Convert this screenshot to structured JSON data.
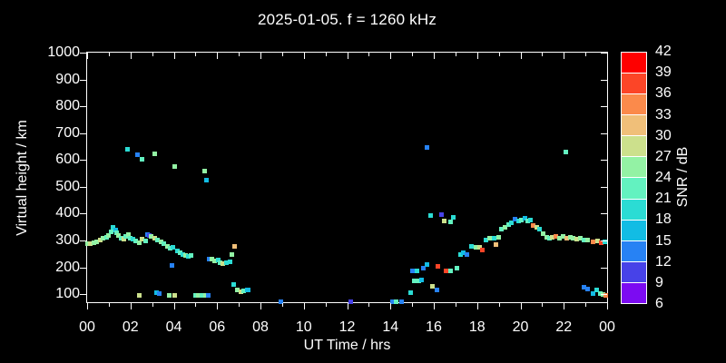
{
  "title": "2025-01-05. f = 1260 kHz",
  "chart_data": {
    "type": "scatter",
    "title": "2025-01-05. f = 1260 kHz",
    "xlabel": "UT Time / hrs",
    "ylabel": "Virtual height / km",
    "xlim": [
      0,
      24
    ],
    "ylim": [
      70,
      1000
    ],
    "grid": false,
    "x_tick_labels": [
      "00",
      "02",
      "04",
      "06",
      "08",
      "10",
      "12",
      "14",
      "16",
      "18",
      "20",
      "22",
      "00"
    ],
    "x_tick_hours": [
      0,
      2,
      4,
      6,
      8,
      10,
      12,
      14,
      16,
      18,
      20,
      22,
      24
    ],
    "y_tick_values": [
      100,
      200,
      300,
      400,
      500,
      600,
      700,
      800,
      900,
      1000
    ],
    "colorbar": {
      "label": "SNR / dB",
      "tick_labels": [
        "42",
        "39",
        "36",
        "33",
        "30",
        "27",
        "24",
        "21",
        "18",
        "15",
        "12",
        "9",
        "6"
      ],
      "min": 6,
      "max": 42,
      "step": 3,
      "colors_low_to_high": [
        "#7c0bf2",
        "#4742e8",
        "#2782f4",
        "#12bce4",
        "#2bdcd4",
        "#63f2c0",
        "#93f2a4",
        "#cce08c",
        "#f0bf79",
        "#fb8a4b",
        "#fc4527",
        "#fe0000"
      ]
    },
    "points_format": [
      "ut_hours",
      "virtual_height_km",
      "snr_db"
    ],
    "points": [
      [
        0.0,
        287,
        25
      ],
      [
        0.15,
        289,
        28
      ],
      [
        0.3,
        292,
        25
      ],
      [
        0.45,
        296,
        25
      ],
      [
        0.6,
        301,
        28
      ],
      [
        0.75,
        307,
        25
      ],
      [
        0.9,
        313,
        22
      ],
      [
        1.0,
        320,
        25
      ],
      [
        1.1,
        331,
        22
      ],
      [
        1.2,
        350,
        19
      ],
      [
        1.3,
        340,
        16
      ],
      [
        1.35,
        330,
        22
      ],
      [
        1.45,
        318,
        25
      ],
      [
        1.55,
        310,
        22
      ],
      [
        1.7,
        304,
        28
      ],
      [
        1.8,
        316,
        22
      ],
      [
        1.9,
        322,
        25
      ],
      [
        2.0,
        310,
        22
      ],
      [
        2.1,
        304,
        19
      ],
      [
        2.25,
        299,
        22
      ],
      [
        2.4,
        293,
        25
      ],
      [
        2.55,
        306,
        28
      ],
      [
        2.7,
        298,
        22
      ],
      [
        2.8,
        322,
        13
      ],
      [
        2.88,
        318,
        10
      ],
      [
        2.95,
        315,
        25
      ],
      [
        3.1,
        308,
        28
      ],
      [
        3.25,
        301,
        22
      ],
      [
        3.4,
        294,
        25
      ],
      [
        3.55,
        287,
        22
      ],
      [
        3.7,
        279,
        25
      ],
      [
        3.83,
        272,
        22
      ],
      [
        3.95,
        275,
        19
      ],
      [
        4.17,
        260,
        19
      ],
      [
        4.3,
        256,
        22
      ],
      [
        4.42,
        249,
        19
      ],
      [
        4.55,
        245,
        25
      ],
      [
        4.66,
        240,
        19
      ],
      [
        4.8,
        245,
        22
      ],
      [
        5.63,
        231,
        13
      ],
      [
        5.77,
        229,
        25
      ],
      [
        5.9,
        223,
        25
      ],
      [
        6.05,
        227,
        19
      ],
      [
        6.15,
        218,
        22
      ],
      [
        6.28,
        215,
        28
      ],
      [
        6.42,
        218,
        19
      ],
      [
        6.6,
        220,
        19
      ],
      [
        6.68,
        246,
        25
      ],
      [
        6.8,
        278,
        31
      ],
      [
        2.42,
        94,
        28
      ],
      [
        3.2,
        104,
        16
      ],
      [
        3.35,
        102,
        13
      ],
      [
        3.8,
        94,
        25
      ],
      [
        4.05,
        95,
        28
      ],
      [
        5.0,
        94,
        22
      ],
      [
        5.15,
        94,
        25
      ],
      [
        5.3,
        94,
        22
      ],
      [
        5.45,
        94,
        25
      ],
      [
        5.6,
        94,
        13
      ],
      [
        6.75,
        135,
        19
      ],
      [
        6.95,
        114,
        25
      ],
      [
        7.1,
        108,
        28
      ],
      [
        7.23,
        111,
        22
      ],
      [
        7.38,
        114,
        16
      ],
      [
        7.45,
        117,
        16
      ],
      [
        3.92,
        207,
        13
      ],
      [
        1.85,
        641,
        19
      ],
      [
        2.34,
        621,
        13
      ],
      [
        2.53,
        604,
        22
      ],
      [
        3.1,
        622,
        25
      ],
      [
        4.06,
        574,
        25
      ],
      [
        5.43,
        557,
        25
      ],
      [
        5.52,
        526,
        16
      ],
      [
        8.93,
        73,
        13
      ],
      [
        12.17,
        73,
        10
      ],
      [
        14.1,
        73,
        13
      ],
      [
        14.25,
        73,
        22
      ],
      [
        14.5,
        73,
        13
      ],
      [
        15.7,
        646,
        13
      ],
      [
        22.1,
        630,
        22
      ],
      [
        14.95,
        106,
        19
      ],
      [
        15.1,
        148,
        22
      ],
      [
        15.3,
        150,
        22
      ],
      [
        15.44,
        152,
        16
      ],
      [
        15.93,
        128,
        28
      ],
      [
        16.14,
        117,
        13
      ],
      [
        15.02,
        187,
        13
      ],
      [
        15.23,
        185,
        19
      ],
      [
        15.5,
        196,
        13
      ],
      [
        15.7,
        212,
        16
      ],
      [
        16.2,
        203,
        37
      ],
      [
        16.56,
        187,
        37
      ],
      [
        16.77,
        187,
        22
      ],
      [
        17.08,
        196,
        22
      ],
      [
        15.86,
        392,
        19
      ],
      [
        16.35,
        398,
        10
      ],
      [
        16.5,
        372,
        28
      ],
      [
        16.77,
        368,
        22
      ],
      [
        16.9,
        386,
        19
      ],
      [
        17.22,
        246,
        19
      ],
      [
        17.35,
        254,
        16
      ],
      [
        17.53,
        249,
        13
      ],
      [
        17.74,
        279,
        19
      ],
      [
        17.95,
        276,
        25
      ],
      [
        18.13,
        274,
        28
      ],
      [
        18.22,
        265,
        37
      ],
      [
        18.4,
        302,
        19
      ],
      [
        18.57,
        308,
        25
      ],
      [
        18.78,
        310,
        19
      ],
      [
        18.85,
        285,
        31
      ],
      [
        19.0,
        313,
        25
      ],
      [
        19.13,
        341,
        22
      ],
      [
        19.27,
        350,
        25
      ],
      [
        19.45,
        358,
        22
      ],
      [
        19.6,
        366,
        19
      ],
      [
        19.75,
        378,
        13
      ],
      [
        19.9,
        372,
        19
      ],
      [
        20.05,
        375,
        22
      ],
      [
        20.2,
        383,
        16
      ],
      [
        20.33,
        372,
        22
      ],
      [
        20.47,
        375,
        19
      ],
      [
        20.6,
        356,
        34
      ],
      [
        20.75,
        350,
        28
      ],
      [
        20.9,
        341,
        19
      ],
      [
        21.04,
        324,
        25
      ],
      [
        21.2,
        313,
        25
      ],
      [
        21.33,
        308,
        22
      ],
      [
        21.48,
        311,
        28
      ],
      [
        21.64,
        315,
        34
      ],
      [
        21.8,
        310,
        25
      ],
      [
        21.98,
        314,
        25
      ],
      [
        22.15,
        309,
        31
      ],
      [
        22.3,
        313,
        25
      ],
      [
        22.45,
        308,
        25
      ],
      [
        22.6,
        305,
        28
      ],
      [
        22.78,
        308,
        25
      ],
      [
        22.95,
        300,
        22
      ],
      [
        23.12,
        303,
        25
      ],
      [
        23.37,
        296,
        34
      ],
      [
        23.54,
        299,
        28
      ],
      [
        23.72,
        291,
        37
      ],
      [
        23.9,
        294,
        19
      ],
      [
        22.92,
        126,
        13
      ],
      [
        23.12,
        119,
        13
      ],
      [
        23.34,
        101,
        16
      ],
      [
        23.5,
        115,
        19
      ],
      [
        23.67,
        102,
        22
      ],
      [
        23.82,
        99,
        25
      ],
      [
        23.95,
        94,
        34
      ]
    ]
  }
}
